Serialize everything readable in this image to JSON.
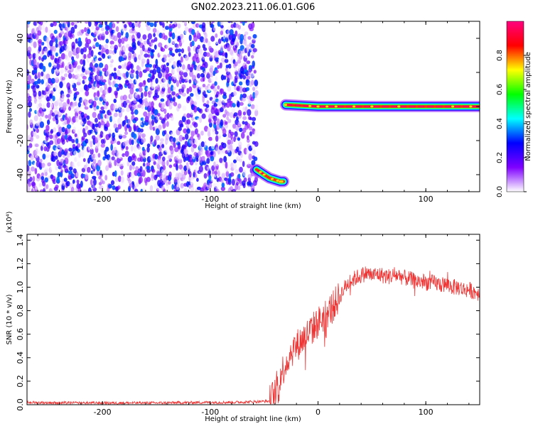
{
  "title": "GN02.2023.211.06.01.G06",
  "chart_data": [
    {
      "type": "heatmap",
      "xlabel": "Height of straight line (km)",
      "ylabel": "Frequency (Hz)",
      "xlim": [
        -270,
        150
      ],
      "ylim": [
        -50,
        50
      ],
      "x_ticks": [
        -200,
        -100,
        0,
        100
      ],
      "x_tick_labels": [
        "-200",
        "-100",
        "0",
        "100"
      ],
      "y_ticks": [
        -40,
        -20,
        0,
        20,
        40
      ],
      "y_tick_labels": [
        "-40",
        "-20",
        "0",
        "20",
        "40"
      ],
      "colorbar": {
        "label": "Normalized spectral amplitude",
        "range": [
          0,
          1
        ],
        "ticks": [
          0,
          0.2,
          0.4,
          0.6,
          0.8
        ],
        "tick_labels": [
          "0.0",
          "0.2",
          "0.4",
          "0.6",
          "0.8"
        ],
        "colors": [
          "#ffffff",
          "#7f00ff",
          "#0000ff",
          "#00ffff",
          "#00ff00",
          "#ffff00",
          "#ff0000",
          "#ff0080"
        ]
      },
      "noise_region": {
        "x_range": [
          -270,
          -57
        ],
        "amplitude": [
          0.0,
          0.35
        ]
      },
      "tracks": [
        {
          "x": [
            -57,
            -50,
            -45,
            -40,
            -35,
            -32
          ],
          "y": [
            -37,
            -40,
            -42,
            -43,
            -44,
            -44
          ],
          "amplitude": 0.95
        },
        {
          "x": [
            -30,
            0,
            50,
            100,
            150
          ],
          "y": [
            1,
            0,
            0,
            0,
            0
          ],
          "amplitude": 0.95
        }
      ]
    },
    {
      "type": "line",
      "xlabel": "Height of straight line (km)",
      "ylabel": "SNR (10 * v/v)",
      "y_multiplier": "(x10⁴)",
      "xlim": [
        -270,
        150
      ],
      "ylim": [
        0,
        14500
      ],
      "x_ticks": [
        -200,
        -100,
        0,
        100
      ],
      "x_tick_labels": [
        "-200",
        "-100",
        "0",
        "100"
      ],
      "y_ticks": [
        0,
        2000,
        4000,
        6000,
        8000,
        10000,
        12000,
        14000
      ],
      "y_tick_labels": [
        "0.0",
        "0.2",
        "0.4",
        "0.6",
        "0.8",
        "1.0",
        "1.2",
        "1.4"
      ],
      "line_color": "#ee3333",
      "series": [
        {
          "x": [
            -270,
            -240,
            -200,
            -150,
            -100,
            -80,
            -60,
            -45,
            -40,
            -35,
            -30,
            -25,
            -20,
            -15,
            -10,
            -5,
            0,
            5,
            10,
            15,
            20,
            25,
            30,
            35,
            40,
            45,
            50,
            55,
            60,
            65,
            70,
            75,
            80,
            85,
            90,
            95,
            100,
            105,
            110,
            115,
            120,
            125,
            130,
            135,
            140,
            145,
            150
          ],
          "values": [
            200,
            150,
            150,
            150,
            200,
            200,
            250,
            300,
            1000,
            2500,
            3500,
            4500,
            5000,
            5500,
            6000,
            6500,
            7000,
            7500,
            8000,
            8500,
            9200,
            10000,
            10500,
            10800,
            11000,
            11200,
            11000,
            11100,
            11000,
            10900,
            11000,
            11000,
            10800,
            10700,
            10500,
            10500,
            10400,
            10400,
            10300,
            10200,
            10200,
            10000,
            10000,
            9800,
            9800,
            9600,
            9500
          ]
        }
      ]
    }
  ]
}
